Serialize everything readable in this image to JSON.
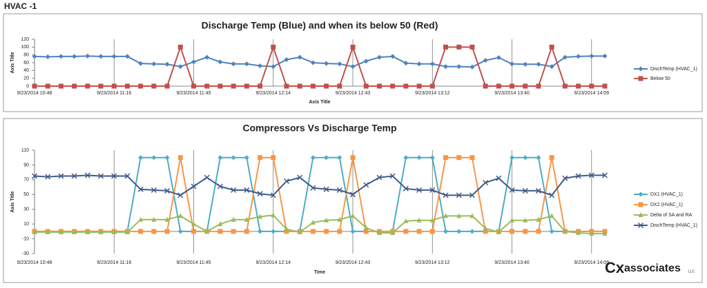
{
  "page_title": "HVAC -1",
  "logo": {
    "mark": "Cx",
    "text": "associates",
    "suffix": "LLC"
  },
  "chart_data": [
    {
      "type": "line",
      "title": "Discharge Temp (Blue) and when its below 50 (Red)",
      "x_label": "Axis Title",
      "y_label": "Axis Title",
      "categories": [
        "9/23/2014 10:48",
        null,
        null,
        null,
        null,
        null,
        "9/23/2014 11:16",
        null,
        null,
        null,
        null,
        null,
        "9/23/2014 11:45",
        null,
        null,
        null,
        null,
        null,
        "9/23/2014 12:14",
        null,
        null,
        null,
        null,
        null,
        "9/23/2014 12:43",
        null,
        null,
        null,
        null,
        null,
        "9/23/2014 13:12",
        null,
        null,
        null,
        null,
        null,
        "9/23/2014 13:40",
        null,
        null,
        null,
        null,
        null,
        "9/23/2014 14:09",
        null
      ],
      "series": [
        {
          "name": "DischTemp (HVAC_1)",
          "color": "#4f81bd",
          "marker": "diamond",
          "values": [
            76,
            75,
            76,
            76,
            77,
            76,
            76,
            76,
            58,
            57,
            56,
            50,
            62,
            74,
            62,
            57,
            57,
            52,
            50,
            68,
            74,
            60,
            58,
            57,
            50,
            64,
            74,
            76,
            59,
            57,
            57,
            50,
            50,
            49,
            66,
            73,
            57,
            56,
            56,
            50,
            74,
            76,
            77,
            77
          ]
        },
        {
          "name": "Below 50",
          "color": "#c0504d",
          "marker": "square",
          "values": [
            0,
            0,
            0,
            0,
            0,
            0,
            0,
            0,
            0,
            0,
            0,
            100,
            0,
            0,
            0,
            0,
            0,
            0,
            100,
            0,
            0,
            0,
            0,
            0,
            100,
            0,
            0,
            0,
            0,
            0,
            0,
            100,
            100,
            100,
            0,
            0,
            0,
            0,
            0,
            100,
            0,
            0,
            0,
            0
          ]
        }
      ],
      "ylim": [
        0,
        120
      ],
      "yticks": [
        0,
        20,
        40,
        60,
        80,
        100,
        120
      ],
      "grid": "x",
      "legend": "right"
    },
    {
      "type": "line",
      "title": "Compressors Vs Discharge Temp",
      "x_label": "Time",
      "y_label": "Axis Title",
      "categories": [
        "9/23/2014 10:48",
        null,
        null,
        null,
        null,
        null,
        "9/23/2014 11:16",
        null,
        null,
        null,
        null,
        null,
        "9/23/2014 11:45",
        null,
        null,
        null,
        null,
        null,
        "9/23/2014 12:14",
        null,
        null,
        null,
        null,
        null,
        "9/23/2014 12:43",
        null,
        null,
        null,
        null,
        null,
        "9/23/2014 13:12",
        null,
        null,
        null,
        null,
        null,
        "9/23/2014 13:40",
        null,
        null,
        null,
        null,
        null,
        "9/23/2014 14:09",
        null
      ],
      "series": [
        {
          "name": "DX1 (HVAC_1)",
          "color": "#4bacc6",
          "marker": "diamond",
          "values": [
            0,
            0,
            0,
            0,
            0,
            0,
            0,
            0,
            100,
            100,
            100,
            0,
            0,
            0,
            100,
            100,
            100,
            0,
            0,
            0,
            0,
            100,
            100,
            100,
            0,
            0,
            0,
            0,
            100,
            100,
            100,
            0,
            0,
            0,
            0,
            0,
            100,
            100,
            100,
            0,
            0,
            0,
            0,
            0
          ]
        },
        {
          "name": "DX2 (HVAC_1)",
          "color": "#f79646",
          "marker": "square",
          "values": [
            0,
            0,
            0,
            0,
            0,
            0,
            0,
            0,
            0,
            0,
            0,
            100,
            0,
            0,
            0,
            0,
            0,
            100,
            100,
            0,
            0,
            0,
            0,
            0,
            100,
            0,
            0,
            0,
            0,
            0,
            0,
            100,
            100,
            100,
            0,
            0,
            0,
            0,
            0,
            100,
            0,
            0,
            0,
            0
          ]
        },
        {
          "name": "Delta of SA and RA",
          "color": "#9bbb59",
          "marker": "triangle",
          "values": [
            -1,
            -1,
            -1,
            -1,
            -1,
            -1,
            -1,
            -1,
            16,
            16,
            16,
            21,
            10,
            0,
            10,
            16,
            16,
            20,
            22,
            3,
            -1,
            12,
            15,
            16,
            21,
            5,
            -2,
            -2,
            14,
            15,
            15,
            21,
            21,
            21,
            4,
            -1,
            15,
            15,
            16,
            21,
            0,
            -2,
            -3,
            -3
          ]
        },
        {
          "name": "DischTemp (HVAC_1)",
          "color": "#3f5a8a",
          "marker": "x",
          "values": [
            75,
            74,
            75,
            75,
            76,
            75,
            75,
            75,
            57,
            56,
            55,
            49,
            61,
            73,
            61,
            56,
            56,
            51,
            49,
            68,
            73,
            59,
            57,
            56,
            50,
            63,
            73,
            75,
            58,
            56,
            56,
            49,
            49,
            49,
            66,
            72,
            56,
            55,
            55,
            49,
            72,
            75,
            76,
            76
          ]
        }
      ],
      "ylim": [
        -30,
        110
      ],
      "yticks": [
        -30,
        -10,
        10,
        30,
        50,
        70,
        90,
        110
      ],
      "grid": "x",
      "legend": "right"
    }
  ]
}
